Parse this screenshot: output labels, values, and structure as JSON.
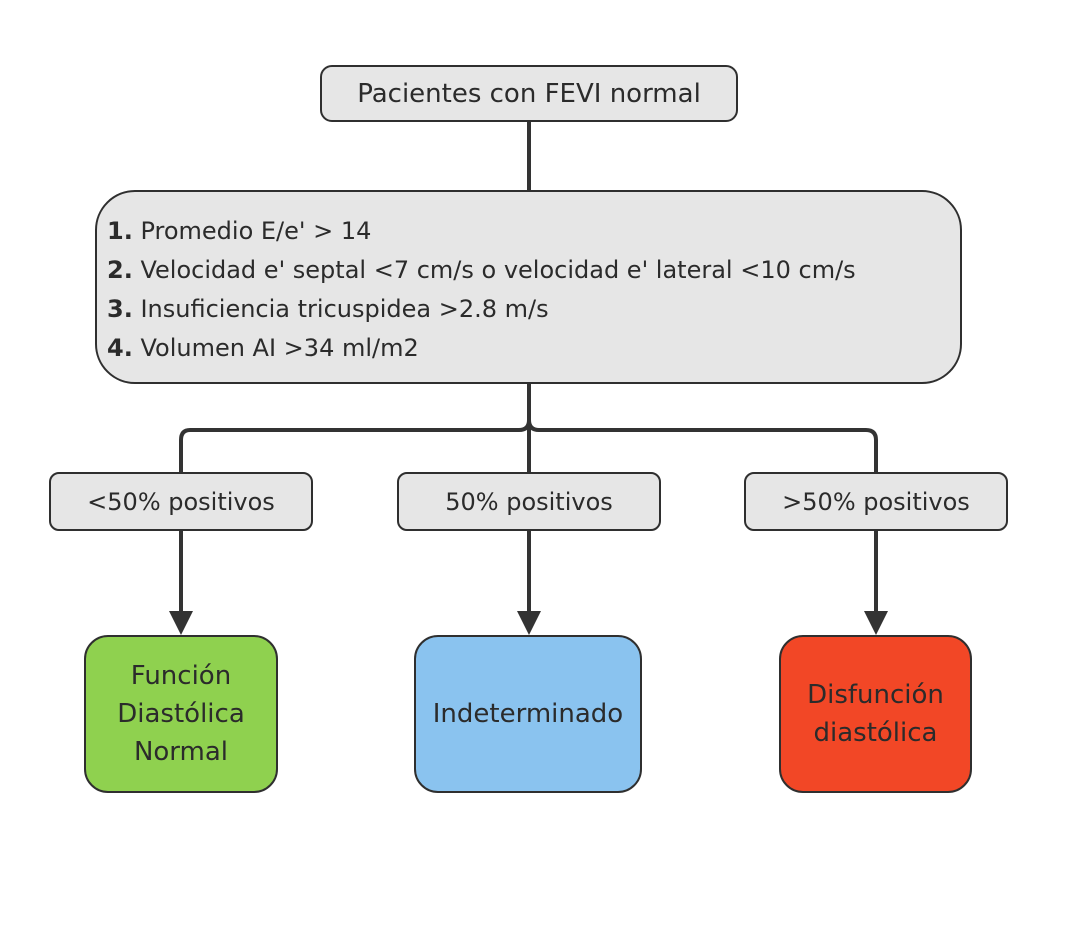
{
  "root": {
    "label": "Pacientes con FEVI normal"
  },
  "criteria": [
    {
      "num": "1.",
      "text": " Promedio E/e' > 14"
    },
    {
      "num": "2.",
      "text": " Velocidad e' septal <7 cm/s o velocidad e' lateral <10 cm/s"
    },
    {
      "num": "3.",
      "text": " Insuficiencia tricuspidea >2.8 m/s"
    },
    {
      "num": "4.",
      "text": " Volumen AI >34 ml/m2"
    }
  ],
  "conditions": {
    "left": "<50% positivos",
    "middle": "50% positivos",
    "right": ">50% positivos"
  },
  "results": {
    "normal": {
      "lines": [
        "Función",
        "Diastólica",
        "Normal"
      ],
      "color": "#8fd14f"
    },
    "indeterminate": {
      "lines": [
        "Indeterminado"
      ],
      "color": "#8ac3ef"
    },
    "dysfunction": {
      "lines": [
        "Disfunción",
        "diastólica"
      ],
      "color": "#f24726"
    }
  },
  "colors": {
    "node_fill": "#e6e6e6",
    "border": "#2f2f2f",
    "connector": "#333333"
  }
}
